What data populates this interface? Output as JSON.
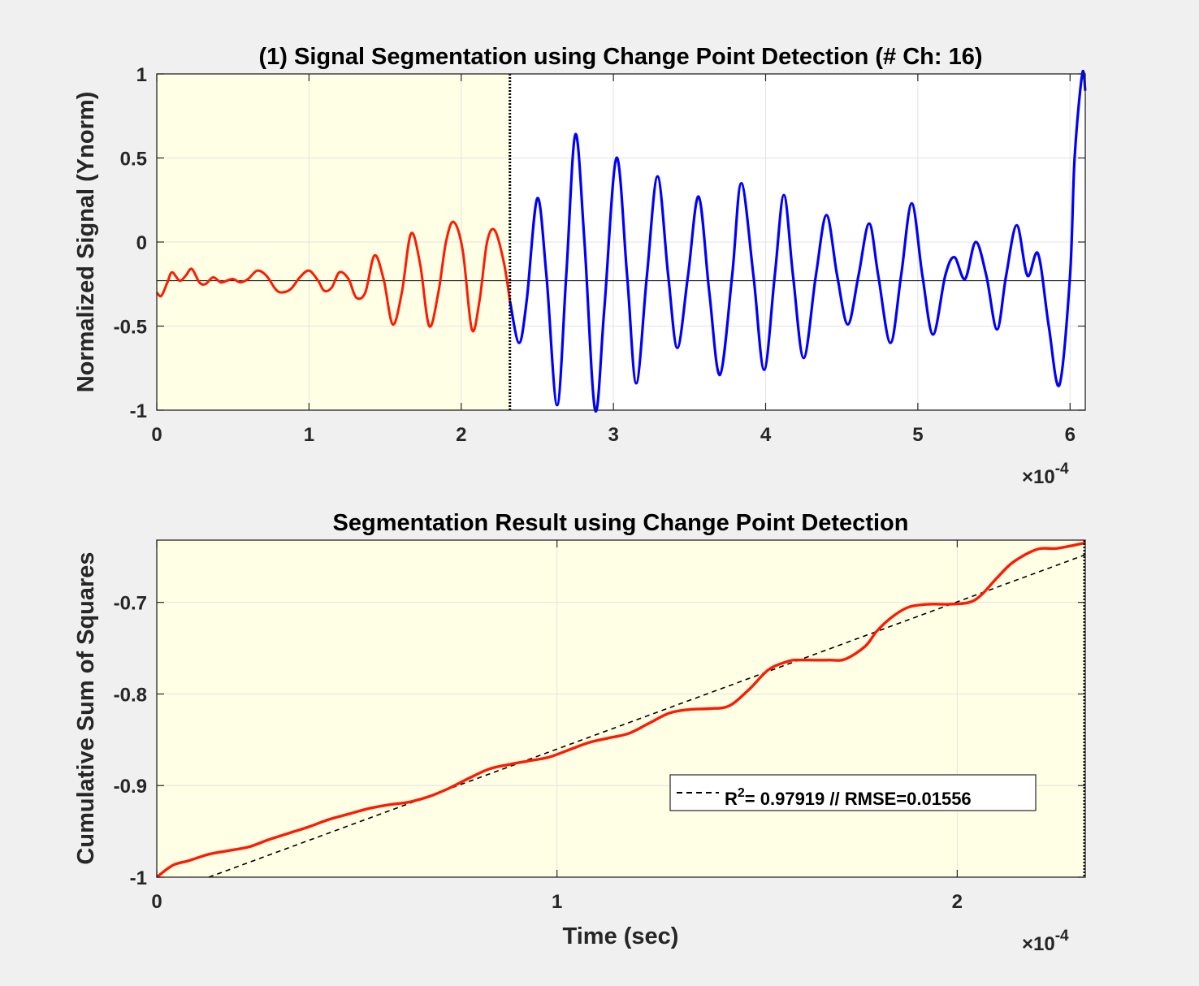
{
  "colors": {
    "figure_bg": "#f0f0f0",
    "axes_bg": "#ffffff",
    "segment_shade": "#ffffe6",
    "segment1": "#ff1a00",
    "segment2": "#0000ff",
    "grid": "#e3e3e3",
    "axis": "#262626",
    "fit": "#000000"
  },
  "chart_data": [
    {
      "type": "line",
      "title": "(1) Signal Segmentation using Change Point Detection (# Ch: 16)",
      "xlabel": "",
      "ylabel": "Normalized Signal (Ynorm)",
      "x_exponent_label": "×10",
      "x_exponent_power": "-4",
      "xlim": [
        0,
        6.1
      ],
      "ylim": [
        -1,
        1
      ],
      "xticks": [
        "0",
        "1",
        "2",
        "3",
        "4",
        "5",
        "6"
      ],
      "xtick_values": [
        0,
        1,
        2,
        3,
        4,
        5,
        6
      ],
      "yticks": [
        "1",
        "0.5",
        "0",
        "-0.5",
        "-1"
      ],
      "ytick_values": [
        1,
        0.5,
        0,
        -0.5,
        -1
      ],
      "grid": true,
      "change_point_x": 2.32,
      "baseline_y": -0.23,
      "x_units_scale": "1e-4 sec",
      "series": [
        {
          "color": "#ff1a00",
          "x": [
            0,
            0.03,
            0.07,
            0.1,
            0.15,
            0.19,
            0.23,
            0.28,
            0.32,
            0.37,
            0.42,
            0.46,
            0.5,
            0.55,
            0.6,
            0.66,
            0.72,
            0.78,
            0.82,
            0.88,
            0.94,
            1.0,
            1.06,
            1.1,
            1.15,
            1.2,
            1.26,
            1.31,
            1.37,
            1.43,
            1.49,
            1.55,
            1.61,
            1.67,
            1.73,
            1.79,
            1.85,
            1.9,
            1.95,
            2.01,
            2.07,
            2.12,
            2.17,
            2.22,
            2.28,
            2.32
          ],
          "y": [
            -0.3,
            -0.32,
            -0.24,
            -0.18,
            -0.23,
            -0.2,
            -0.16,
            -0.24,
            -0.25,
            -0.21,
            -0.24,
            -0.23,
            -0.22,
            -0.24,
            -0.22,
            -0.17,
            -0.2,
            -0.28,
            -0.3,
            -0.28,
            -0.21,
            -0.17,
            -0.23,
            -0.29,
            -0.27,
            -0.18,
            -0.22,
            -0.33,
            -0.3,
            -0.08,
            -0.22,
            -0.49,
            -0.3,
            0.05,
            -0.13,
            -0.5,
            -0.3,
            0.0,
            0.12,
            -0.05,
            -0.52,
            -0.35,
            0.0,
            0.07,
            -0.12,
            -0.35
          ]
        },
        {
          "color": "#0000ff",
          "x": [
            2.32,
            2.38,
            2.43,
            2.5,
            2.56,
            2.63,
            2.69,
            2.75,
            2.81,
            2.88,
            2.94,
            3.02,
            3.09,
            3.15,
            3.22,
            3.29,
            3.36,
            3.42,
            3.49,
            3.56,
            3.63,
            3.7,
            3.78,
            3.84,
            3.92,
            3.99,
            4.06,
            4.12,
            4.18,
            4.25,
            4.33,
            4.4,
            4.47,
            4.54,
            4.61,
            4.68,
            4.74,
            4.82,
            4.89,
            4.96,
            5.03,
            5.1,
            5.18,
            5.24,
            5.31,
            5.38,
            5.45,
            5.52,
            5.58,
            5.65,
            5.72,
            5.79,
            5.86,
            5.93,
            6.0,
            6.03,
            6.08,
            6.1
          ],
          "y": [
            -0.35,
            -0.6,
            -0.35,
            0.26,
            -0.2,
            -0.97,
            -0.2,
            0.64,
            0.0,
            -1.0,
            -0.4,
            0.5,
            -0.2,
            -0.84,
            -0.2,
            0.39,
            -0.2,
            -0.63,
            -0.2,
            0.27,
            -0.3,
            -0.79,
            -0.2,
            0.35,
            -0.2,
            -0.76,
            -0.2,
            0.28,
            -0.2,
            -0.69,
            -0.2,
            0.16,
            -0.2,
            -0.49,
            -0.2,
            0.11,
            -0.2,
            -0.6,
            -0.2,
            0.23,
            -0.2,
            -0.55,
            -0.2,
            -0.09,
            -0.22,
            0.0,
            -0.2,
            -0.52,
            -0.2,
            0.1,
            -0.2,
            -0.07,
            -0.5,
            -0.85,
            -0.2,
            0.5,
            1.0,
            0.9
          ]
        }
      ]
    },
    {
      "type": "line",
      "title": "Segmentation Result using Change Point Detection",
      "xlabel": "Time (sec)",
      "ylabel": "Cumulative Sum of Squares",
      "x_exponent_label": "×10",
      "x_exponent_power": "-4",
      "xlim": [
        0,
        2.32
      ],
      "ylim": [
        -1,
        -0.632
      ],
      "xticks": [
        "0",
        "1",
        "2"
      ],
      "xtick_values": [
        0,
        1,
        2
      ],
      "yticks": [
        "-0.7",
        "-0.8",
        "-0.9",
        "-1"
      ],
      "ytick_values": [
        -0.7,
        -0.8,
        -0.9,
        -1
      ],
      "grid": true,
      "legend_position": "lower-right",
      "legend_text": "= 0.97919 // RMSE=0.01556",
      "legend_symbol": "R",
      "legend_superscript": "2",
      "series": [
        {
          "color": "#ff1a00",
          "x": [
            0,
            0.04,
            0.08,
            0.13,
            0.18,
            0.23,
            0.28,
            0.33,
            0.38,
            0.43,
            0.48,
            0.53,
            0.58,
            0.63,
            0.68,
            0.73,
            0.78,
            0.83,
            0.88,
            0.93,
            0.98,
            1.03,
            1.08,
            1.13,
            1.18,
            1.23,
            1.28,
            1.33,
            1.38,
            1.43,
            1.48,
            1.53,
            1.58,
            1.6,
            1.63,
            1.68,
            1.72,
            1.77,
            1.8,
            1.84,
            1.88,
            1.93,
            1.98,
            2.03,
            2.06,
            2.1,
            2.14,
            2.2,
            2.25,
            2.32
          ],
          "y": [
            -1,
            -0.987,
            -0.982,
            -0.975,
            -0.971,
            -0.967,
            -0.959,
            -0.952,
            -0.945,
            -0.937,
            -0.931,
            -0.925,
            -0.921,
            -0.918,
            -0.912,
            -0.903,
            -0.892,
            -0.882,
            -0.877,
            -0.873,
            -0.869,
            -0.861,
            -0.853,
            -0.848,
            -0.843,
            -0.832,
            -0.821,
            -0.817,
            -0.816,
            -0.813,
            -0.795,
            -0.773,
            -0.764,
            -0.763,
            -0.763,
            -0.763,
            -0.762,
            -0.748,
            -0.731,
            -0.715,
            -0.705,
            -0.702,
            -0.702,
            -0.7,
            -0.692,
            -0.673,
            -0.656,
            -0.642,
            -0.641,
            -0.635
          ]
        },
        {
          "color": "#000000",
          "style": "dashed",
          "x": [
            0.13,
            2.32
          ],
          "y": [
            -1.0,
            -0.648
          ]
        }
      ]
    }
  ]
}
